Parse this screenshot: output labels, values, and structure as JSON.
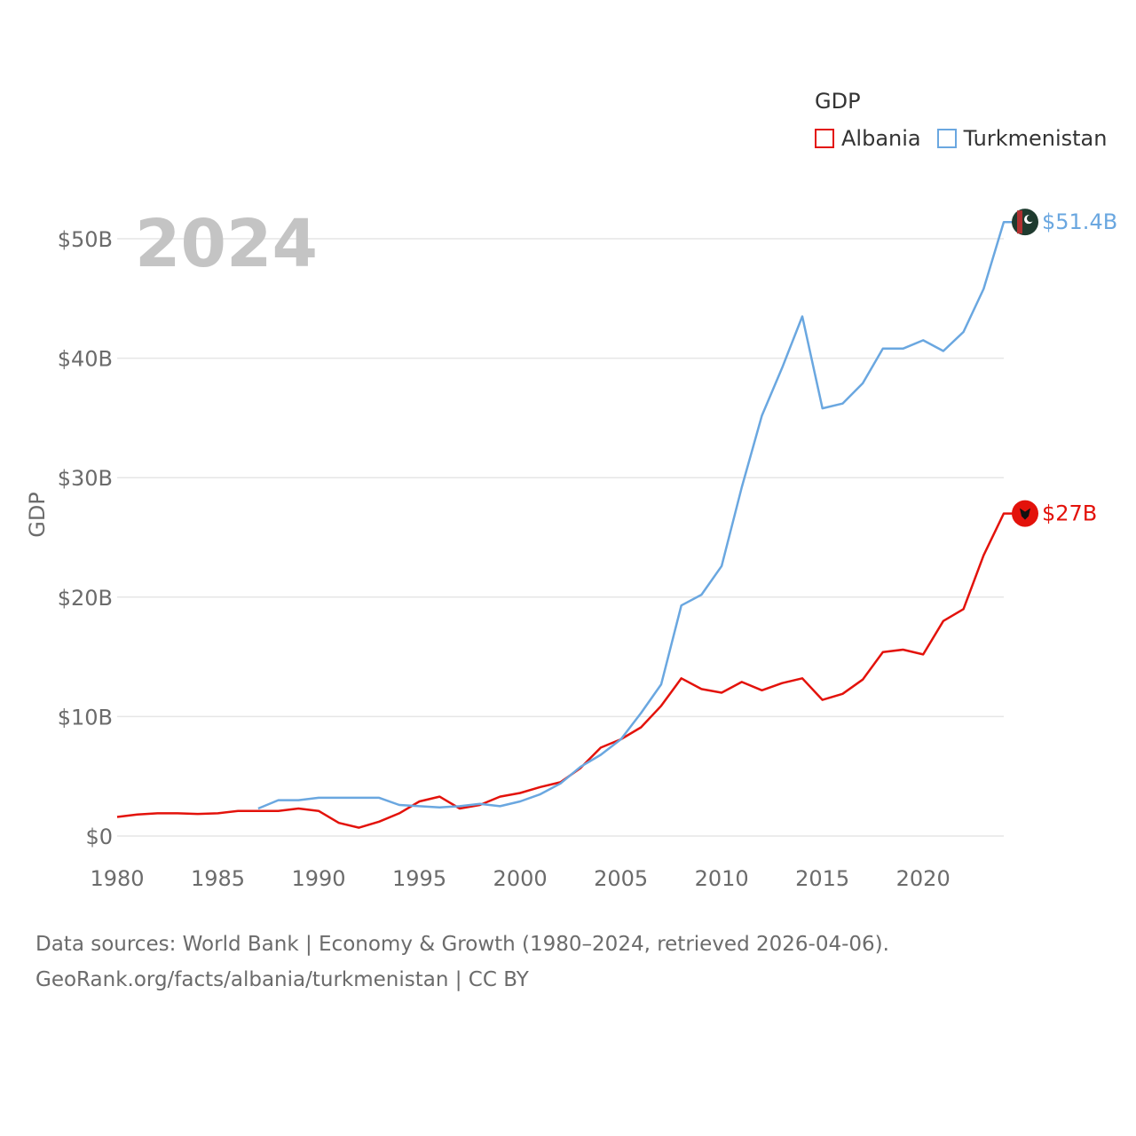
{
  "chart_data": {
    "type": "line",
    "title": "",
    "year_label": "2024",
    "xlabel": "",
    "ylabel": "GDP",
    "legend_title": "GDP",
    "xlim": [
      1980,
      2024
    ],
    "ylim": [
      0,
      50
    ],
    "x_ticks": [
      1980,
      1985,
      1990,
      1995,
      2000,
      2005,
      2010,
      2015,
      2020
    ],
    "x_tick_labels": [
      "1980",
      "1985",
      "1990",
      "1995",
      "2000",
      "2005",
      "2010",
      "2015",
      "2020"
    ],
    "y_ticks": [
      0,
      10,
      20,
      30,
      40,
      50
    ],
    "y_tick_labels": [
      "$0",
      "$10B",
      "$20B",
      "$30B",
      "$40B",
      "$50B"
    ],
    "grid": true,
    "legend_position": "top-right",
    "series": [
      {
        "name": "Albania",
        "color": "#e3120b",
        "end_label": "$27B",
        "x": [
          1980,
          1981,
          1982,
          1983,
          1984,
          1985,
          1986,
          1987,
          1988,
          1989,
          1990,
          1991,
          1992,
          1993,
          1994,
          1995,
          1996,
          1997,
          1998,
          1999,
          2000,
          2001,
          2002,
          2003,
          2004,
          2005,
          2006,
          2007,
          2008,
          2009,
          2010,
          2011,
          2012,
          2013,
          2014,
          2015,
          2016,
          2017,
          2018,
          2019,
          2020,
          2021,
          2022,
          2023,
          2024
        ],
        "values": [
          1.6,
          1.8,
          1.9,
          1.9,
          1.85,
          1.9,
          2.1,
          2.1,
          2.1,
          2.3,
          2.1,
          1.1,
          0.7,
          1.2,
          1.9,
          2.9,
          3.3,
          2.3,
          2.6,
          3.3,
          3.6,
          4.1,
          4.5,
          5.7,
          7.4,
          8.1,
          9.1,
          10.9,
          13.2,
          12.3,
          12.0,
          12.9,
          12.2,
          12.8,
          13.2,
          11.4,
          11.9,
          13.1,
          15.4,
          15.6,
          15.2,
          18.0,
          19.0,
          23.5,
          27.0
        ]
      },
      {
        "name": "Turkmenistan",
        "color": "#6aa7e0",
        "end_label": "$51.4B",
        "x": [
          1987,
          1988,
          1989,
          1990,
          1991,
          1992,
          1993,
          1994,
          1995,
          1996,
          1997,
          1998,
          1999,
          2000,
          2001,
          2002,
          2003,
          2004,
          2005,
          2006,
          2007,
          2008,
          2009,
          2010,
          2011,
          2012,
          2013,
          2014,
          2015,
          2016,
          2017,
          2018,
          2019,
          2020,
          2021,
          2022,
          2023,
          2024
        ],
        "values": [
          2.3,
          3.0,
          3.0,
          3.2,
          3.2,
          3.2,
          3.2,
          2.6,
          2.5,
          2.4,
          2.5,
          2.7,
          2.5,
          2.9,
          3.5,
          4.4,
          5.8,
          6.8,
          8.1,
          10.3,
          12.7,
          19.3,
          20.2,
          22.6,
          29.2,
          35.2,
          39.2,
          43.5,
          35.8,
          36.2,
          37.9,
          40.8,
          40.8,
          41.5,
          40.6,
          42.2,
          45.8,
          51.4
        ]
      }
    ]
  },
  "source": {
    "line1": "Data sources: World Bank | Economy & Growth (1980–2024, retrieved 2026-04-06).",
    "line2": "GeoRank.org/facts/albania/turkmenistan | CC BY"
  }
}
